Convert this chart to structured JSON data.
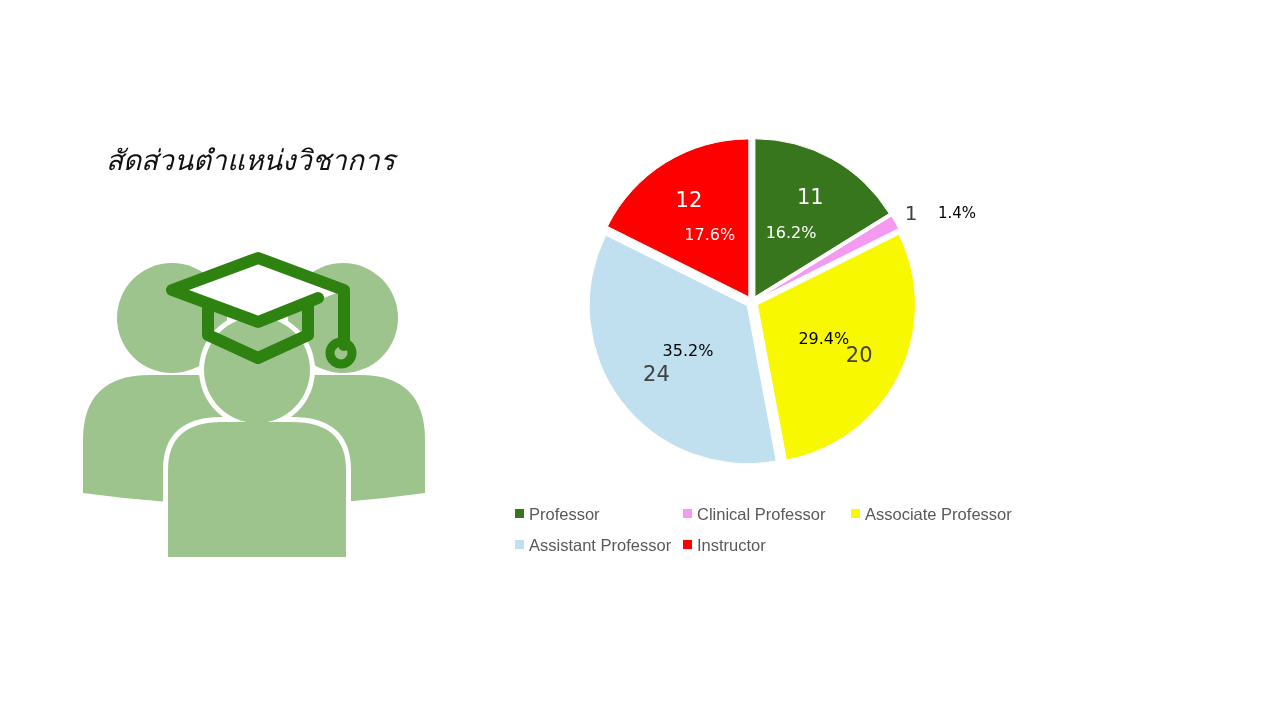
{
  "chart_data": {
    "type": "pie",
    "title": "สัดส่วนตำแหน่งวิชาการ",
    "categories": [
      "Professor",
      "Clinical Professor",
      "Associate Professor",
      "Assistant Professor",
      "Instructor"
    ],
    "values": [
      11,
      1,
      20,
      24,
      12
    ],
    "colors": [
      "#38761d",
      "#f49af0",
      "#f8f800",
      "#c0e0f0",
      "#ff0000"
    ],
    "data_labels": true,
    "legend": "bottom",
    "annotations": [
      {
        "text": "16.2%",
        "x": "Professor"
      },
      {
        "text": "1.4%",
        "x": "Clinical Professor"
      },
      {
        "text": "29.4%",
        "x": "Associate Professor"
      },
      {
        "text": "35.2%",
        "x": "Assistant Professor"
      },
      {
        "text": "17.6%",
        "x": "Instructor"
      }
    ]
  }
}
